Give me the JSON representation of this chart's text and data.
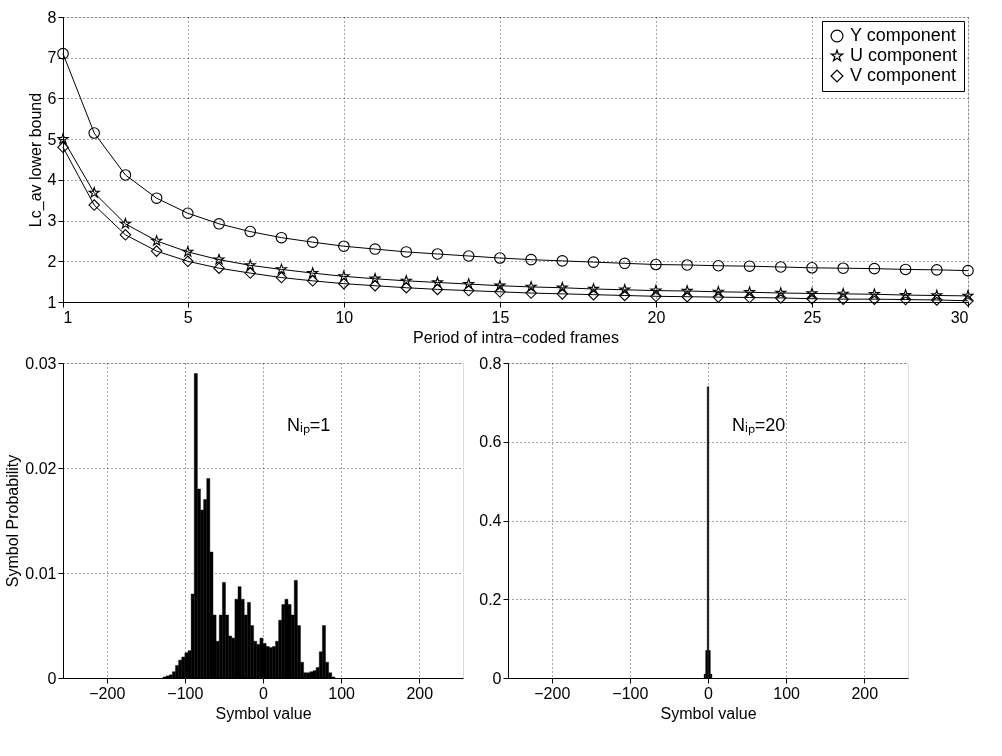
{
  "chart_data": [
    {
      "type": "line",
      "xlabel": "Period of intra−coded frames",
      "ylabel": "Lc_av lower bound",
      "x": [
        1,
        2,
        3,
        4,
        5,
        6,
        7,
        8,
        9,
        10,
        11,
        12,
        13,
        14,
        15,
        16,
        17,
        18,
        19,
        20,
        21,
        22,
        23,
        24,
        25,
        26,
        27,
        28,
        29,
        30
      ],
      "series": [
        {
          "name": "Y component",
          "color": "#000000",
          "marker": "circle",
          "values": [
            7.1,
            5.15,
            4.12,
            3.55,
            3.18,
            2.92,
            2.73,
            2.58,
            2.47,
            2.37,
            2.3,
            2.23,
            2.18,
            2.13,
            2.08,
            2.04,
            2.01,
            1.98,
            1.95,
            1.92,
            1.91,
            1.89,
            1.88,
            1.86,
            1.84,
            1.83,
            1.82,
            1.8,
            1.79,
            1.77
          ]
        },
        {
          "name": "U component",
          "color": "#000000",
          "marker": "star",
          "values": [
            5.0,
            3.68,
            2.92,
            2.5,
            2.23,
            2.04,
            1.9,
            1.8,
            1.71,
            1.63,
            1.57,
            1.52,
            1.48,
            1.44,
            1.4,
            1.37,
            1.35,
            1.32,
            1.3,
            1.28,
            1.27,
            1.25,
            1.24,
            1.22,
            1.21,
            1.2,
            1.19,
            1.17,
            1.16,
            1.15
          ]
        },
        {
          "name": "V component",
          "color": "#000000",
          "marker": "diamond",
          "values": [
            4.8,
            3.38,
            2.65,
            2.25,
            2.0,
            1.83,
            1.71,
            1.6,
            1.52,
            1.45,
            1.4,
            1.35,
            1.31,
            1.28,
            1.25,
            1.22,
            1.2,
            1.18,
            1.16,
            1.14,
            1.13,
            1.12,
            1.11,
            1.1,
            1.08,
            1.07,
            1.07,
            1.06,
            1.05,
            1.03
          ]
        }
      ],
      "xlim": [
        1,
        30
      ],
      "xticks": [
        1,
        5,
        10,
        15,
        20,
        25,
        30
      ],
      "ylim": [
        1,
        8
      ],
      "yticks": [
        1,
        2,
        3,
        4,
        5,
        6,
        7,
        8
      ],
      "grid": true,
      "legend": "top right",
      "line_style": "solid"
    },
    {
      "type": "histogram",
      "xlabel": "Symbol value",
      "ylabel": "Symbol Probability",
      "color": "#000000",
      "bins": [
        -128,
        -124,
        -120,
        -116,
        -112,
        -108,
        -104,
        -100,
        -96,
        -92,
        -88,
        -84,
        -80,
        -76,
        -72,
        -68,
        -64,
        -60,
        -56,
        -52,
        -48,
        -44,
        -40,
        -36,
        -32,
        -28,
        -24,
        -20,
        -16,
        -12,
        -8,
        -4,
        0,
        4,
        8,
        12,
        16,
        20,
        24,
        28,
        32,
        36,
        40,
        44,
        48,
        52,
        56,
        60,
        64,
        68,
        72,
        76,
        80,
        84,
        88,
        92
      ],
      "values": [
        0.0001,
        0.0002,
        0.0003,
        0.0006,
        0.0012,
        0.0017,
        0.002,
        0.0024,
        0.0026,
        0.008,
        0.029,
        0.018,
        0.016,
        0.017,
        0.019,
        0.012,
        0.006,
        0.0035,
        0.006,
        0.0091,
        0.006,
        0.004,
        0.0038,
        0.0075,
        0.0087,
        0.0075,
        0.006,
        0.0072,
        0.005,
        0.0035,
        0.0032,
        0.0038,
        0.0033,
        0.003,
        0.0029,
        0.003,
        0.0035,
        0.0055,
        0.007,
        0.0075,
        0.007,
        0.006,
        0.0093,
        0.005,
        0.0015,
        0.0005,
        0.0005,
        0.0006,
        0.0007,
        0.001,
        0.0025,
        0.005,
        0.0015,
        0.0005,
        0.0001
      ],
      "xlim": [
        -256,
        256
      ],
      "xticks": [
        -200,
        -100,
        0,
        100,
        200
      ],
      "ylim": [
        0,
        0.03
      ],
      "yticks": [
        0,
        0.01,
        0.02,
        0.03
      ],
      "grid": true,
      "annotations": [
        "Nᵢₚ=1"
      ]
    },
    {
      "type": "histogram",
      "xlabel": "Symbol value",
      "color": "#000000",
      "bins": [
        -5,
        -3,
        -1,
        1,
        3,
        5
      ],
      "values": [
        0.01,
        0.07,
        0.74,
        0.07,
        0.01
      ],
      "xlim": [
        -256,
        256
      ],
      "xticks": [
        -200,
        -100,
        0,
        100,
        200
      ],
      "ylim": [
        0,
        0.8
      ],
      "yticks": [
        0,
        0.2,
        0.4,
        0.6,
        0.8
      ],
      "grid": true,
      "annotations": [
        "Nᵢₚ=20"
      ]
    }
  ]
}
